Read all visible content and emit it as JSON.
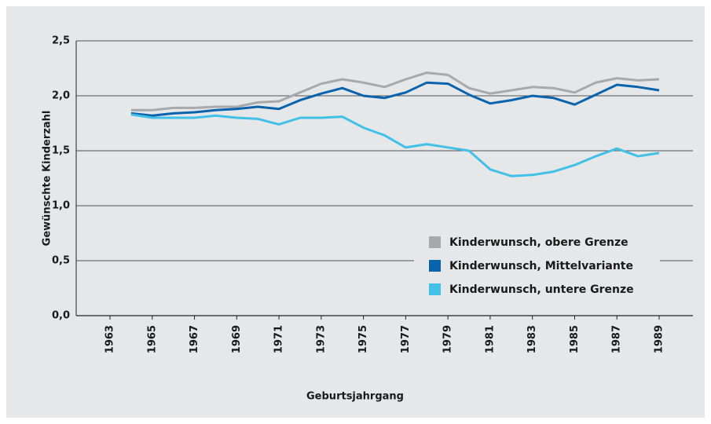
{
  "chart_data": {
    "type": "line",
    "x_label": "Geburtsjahrgang",
    "y_label": "Gewünschte Kinderzahl",
    "x": [
      1964,
      1965,
      1966,
      1967,
      1968,
      1969,
      1970,
      1971,
      1972,
      1973,
      1974,
      1975,
      1976,
      1977,
      1978,
      1979,
      1980,
      1981,
      1982,
      1983,
      1984,
      1985,
      1986,
      1987,
      1988,
      1989
    ],
    "series": [
      {
        "name": "Kinderwunsch, obere Grenze",
        "color": "#a7a9ac",
        "values": [
          1.87,
          1.87,
          1.89,
          1.89,
          1.9,
          1.9,
          1.94,
          1.95,
          2.03,
          2.11,
          2.15,
          2.12,
          2.08,
          2.15,
          2.21,
          2.19,
          2.07,
          2.02,
          2.05,
          2.08,
          2.07,
          2.03,
          2.12,
          2.16,
          2.14,
          2.15
        ]
      },
      {
        "name": "Kinderwunsch, Mittelvariante",
        "color": "#0a63ad",
        "values": [
          1.84,
          1.82,
          1.84,
          1.85,
          1.87,
          1.88,
          1.9,
          1.88,
          1.96,
          2.02,
          2.07,
          2.0,
          1.98,
          2.03,
          2.12,
          2.11,
          2.01,
          1.93,
          1.96,
          2.0,
          1.98,
          1.92,
          2.01,
          2.1,
          2.08,
          2.05
        ]
      },
      {
        "name": "Kinderwunsch, untere Grenze",
        "color": "#41c0e8",
        "values": [
          1.83,
          1.8,
          1.8,
          1.8,
          1.82,
          1.8,
          1.79,
          1.74,
          1.8,
          1.8,
          1.81,
          1.71,
          1.64,
          1.53,
          1.56,
          1.53,
          1.5,
          1.33,
          1.27,
          1.28,
          1.31,
          1.37,
          1.45,
          1.52,
          1.45,
          1.48
        ]
      }
    ],
    "xlim": [
      1961.4,
      1990.6
    ],
    "xticks": [
      1963,
      1965,
      1967,
      1969,
      1971,
      1973,
      1975,
      1977,
      1979,
      1981,
      1983,
      1985,
      1987,
      1989
    ],
    "ylim": [
      0,
      2.5
    ],
    "yticks": [
      {
        "value": 0,
        "label": "0,0"
      },
      {
        "value": 0.5,
        "label": "0,5"
      },
      {
        "value": 1,
        "label": "1,0"
      },
      {
        "value": 1.5,
        "label": "1,5"
      },
      {
        "value": 2,
        "label": "2,0"
      },
      {
        "value": 2.5,
        "label": "2,5"
      }
    ],
    "grid": true,
    "legend": "lower right"
  }
}
